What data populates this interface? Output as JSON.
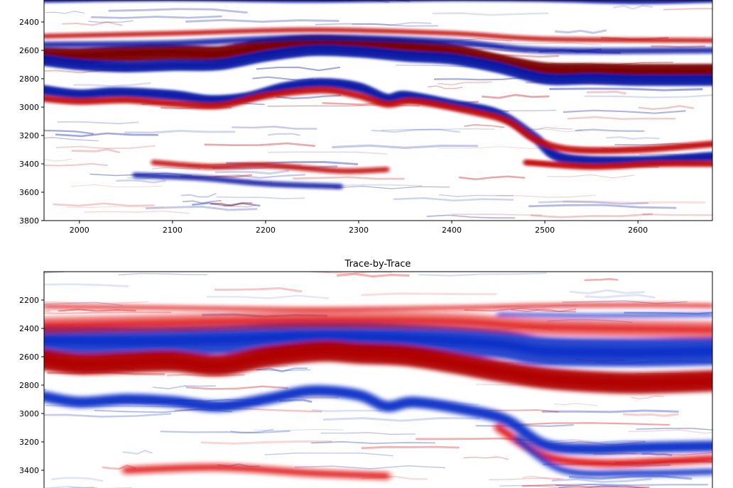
{
  "chart_data": [
    {
      "type": "heatmap",
      "title": "",
      "xlabel": "",
      "ylabel": "",
      "x_ticks": [
        2000,
        2100,
        2200,
        2300,
        2400,
        2500,
        2600
      ],
      "y_ticks": [
        2400,
        2600,
        2800,
        3000,
        3200,
        3400,
        3600,
        3800
      ],
      "xlim": [
        1962,
        2680
      ],
      "ylim": [
        3800,
        2200
      ],
      "colormap": "seismic (blue-white-red)",
      "colors": {
        "negative": "#0a1aa6",
        "zero": "#ffffff",
        "positive": "#c40a0a",
        "strong_positive": "#7a0000"
      },
      "horizons": [
        {
          "polarity": "positive",
          "strength": 1.0,
          "width": 22,
          "points": [
            [
              1962,
              2635
            ],
            [
              2000,
              2640
            ],
            [
              2040,
              2625
            ],
            [
              2100,
              2615
            ],
            [
              2150,
              2625
            ],
            [
              2200,
              2570
            ],
            [
              2250,
              2545
            ],
            [
              2300,
              2555
            ],
            [
              2350,
              2570
            ],
            [
              2400,
              2610
            ],
            [
              2450,
              2680
            ],
            [
              2500,
              2740
            ],
            [
              2550,
              2745
            ],
            [
              2600,
              2750
            ],
            [
              2680,
              2750
            ]
          ]
        },
        {
          "polarity": "negative",
          "strength": 1.0,
          "width": 16,
          "points": [
            [
              1962,
              2670
            ],
            [
              2000,
              2700
            ],
            [
              2050,
              2715
            ],
            [
              2100,
              2705
            ],
            [
              2150,
              2700
            ],
            [
              2200,
              2640
            ],
            [
              2250,
              2600
            ],
            [
              2300,
              2610
            ],
            [
              2350,
              2640
            ],
            [
              2400,
              2660
            ],
            [
              2450,
              2720
            ],
            [
              2500,
              2800
            ],
            [
              2550,
              2800
            ],
            [
              2600,
              2810
            ],
            [
              2680,
              2810
            ]
          ]
        },
        {
          "polarity": "negative",
          "strength": 1.0,
          "width": 14,
          "points": [
            [
              1962,
              2880
            ],
            [
              2000,
              2910
            ],
            [
              2040,
              2895
            ],
            [
              2100,
              2915
            ],
            [
              2140,
              2950
            ],
            [
              2180,
              2930
            ],
            [
              2220,
              2860
            ],
            [
              2260,
              2830
            ],
            [
              2300,
              2860
            ],
            [
              2330,
              2940
            ],
            [
              2350,
              2920
            ],
            [
              2400,
              2980
            ],
            [
              2450,
              3050
            ],
            [
              2490,
              3220
            ],
            [
              2520,
              3360
            ],
            [
              2600,
              3380
            ],
            [
              2680,
              3350
            ]
          ]
        },
        {
          "polarity": "positive",
          "strength": 0.8,
          "width": 10,
          "points": [
            [
              1962,
              2940
            ],
            [
              2000,
              2960
            ],
            [
              2050,
              2950
            ],
            [
              2100,
              2975
            ],
            [
              2150,
              2990
            ],
            [
              2200,
              2920
            ],
            [
              2260,
              2880
            ],
            [
              2300,
              2920
            ],
            [
              2330,
              2980
            ],
            [
              2360,
              2960
            ],
            [
              2420,
              3030
            ],
            [
              2460,
              3100
            ],
            [
              2490,
              3230
            ],
            [
              2530,
              3300
            ],
            [
              2600,
              3300
            ],
            [
              2680,
              3260
            ]
          ]
        },
        {
          "polarity": "positive",
          "strength": 0.9,
          "width": 9,
          "points": [
            [
              2480,
              3390
            ],
            [
              2550,
              3420
            ],
            [
              2620,
              3400
            ],
            [
              2680,
              3400
            ]
          ]
        },
        {
          "polarity": "negative",
          "strength": 0.8,
          "width": 8,
          "points": [
            [
              1962,
              2245
            ],
            [
              2100,
              2235
            ],
            [
              2250,
              2245
            ],
            [
              2400,
              2235
            ],
            [
              2500,
              2240
            ],
            [
              2600,
              2255
            ],
            [
              2680,
              2245
            ]
          ]
        },
        {
          "polarity": "positive",
          "strength": 0.5,
          "width": 8,
          "points": [
            [
              1962,
              2500
            ],
            [
              2100,
              2480
            ],
            [
              2250,
              2455
            ],
            [
              2400,
              2480
            ],
            [
              2500,
              2520
            ],
            [
              2680,
              2530
            ]
          ]
        },
        {
          "polarity": "negative",
          "strength": 0.5,
          "width": 10,
          "points": [
            [
              1962,
              2560
            ],
            [
              2100,
              2550
            ],
            [
              2250,
              2510
            ],
            [
              2400,
              2540
            ],
            [
              2500,
              2600
            ],
            [
              2680,
              2600
            ]
          ]
        },
        {
          "polarity": "positive",
          "strength": 0.55,
          "width": 9,
          "points": [
            [
              2080,
              3390
            ],
            [
              2140,
              3420
            ],
            [
              2200,
              3410
            ],
            [
              2280,
              3450
            ],
            [
              2330,
              3440
            ]
          ]
        },
        {
          "polarity": "negative",
          "strength": 0.5,
          "width": 9,
          "points": [
            [
              2060,
              3480
            ],
            [
              2130,
              3500
            ],
            [
              2200,
              3540
            ],
            [
              2280,
              3560
            ]
          ]
        }
      ]
    },
    {
      "type": "heatmap",
      "title": "Trace-by-Trace",
      "xlabel": "",
      "ylabel": "",
      "x_ticks": [],
      "y_ticks": [
        2200,
        2400,
        2600,
        2800,
        3000,
        3200,
        3400
      ],
      "xlim": [
        1962,
        2680
      ],
      "ylim": [
        3520,
        2020
      ],
      "colormap": "seismic (blue-white-red)",
      "colors": {
        "negative": "#1030c8",
        "zero": "#ffffff",
        "positive": "#e01010",
        "strong_positive": "#b00000"
      },
      "horizons": [
        {
          "polarity": "negative",
          "strength": 0.9,
          "width": 40,
          "points": [
            [
              1962,
              2480
            ],
            [
              2050,
              2490
            ],
            [
              2150,
              2480
            ],
            [
              2250,
              2455
            ],
            [
              2350,
              2470
            ],
            [
              2450,
              2510
            ],
            [
              2500,
              2560
            ],
            [
              2600,
              2570
            ],
            [
              2680,
              2560
            ]
          ]
        },
        {
          "polarity": "positive",
          "strength": 1.0,
          "width": 30,
          "points": [
            [
              1962,
              2620
            ],
            [
              2000,
              2650
            ],
            [
              2050,
              2640
            ],
            [
              2100,
              2630
            ],
            [
              2150,
              2660
            ],
            [
              2200,
              2600
            ],
            [
              2260,
              2560
            ],
            [
              2300,
              2575
            ],
            [
              2350,
              2590
            ],
            [
              2400,
              2640
            ],
            [
              2450,
              2700
            ],
            [
              2500,
              2750
            ],
            [
              2550,
              2775
            ],
            [
              2600,
              2785
            ],
            [
              2680,
              2770
            ]
          ]
        },
        {
          "polarity": "negative",
          "strength": 0.9,
          "width": 16,
          "points": [
            [
              1962,
              2880
            ],
            [
              2000,
              2920
            ],
            [
              2050,
              2900
            ],
            [
              2100,
              2915
            ],
            [
              2150,
              2950
            ],
            [
              2200,
              2900
            ],
            [
              2250,
              2840
            ],
            [
              2300,
              2870
            ],
            [
              2330,
              2950
            ],
            [
              2360,
              2920
            ],
            [
              2420,
              2980
            ],
            [
              2460,
              3050
            ],
            [
              2500,
              3220
            ],
            [
              2550,
              3250
            ],
            [
              2600,
              3240
            ],
            [
              2680,
              3230
            ]
          ]
        },
        {
          "polarity": "positive",
          "strength": 0.7,
          "width": 12,
          "points": [
            [
              2450,
              3100
            ],
            [
              2500,
              3300
            ],
            [
              2560,
              3350
            ],
            [
              2620,
              3340
            ],
            [
              2680,
              3320
            ]
          ]
        },
        {
          "polarity": "negative",
          "strength": 0.6,
          "width": 10,
          "points": [
            [
              2470,
              3180
            ],
            [
              2520,
              3400
            ],
            [
              2600,
              3420
            ],
            [
              2680,
              3410
            ]
          ]
        },
        {
          "polarity": "positive",
          "strength": 0.6,
          "width": 6,
          "points": [
            [
              1962,
              2245
            ],
            [
              2100,
              2255
            ],
            [
              2250,
              2265
            ],
            [
              2400,
              2255
            ],
            [
              2500,
              2240
            ],
            [
              2600,
              2235
            ],
            [
              2680,
              2240
            ]
          ]
        },
        {
          "polarity": "negative",
          "strength": 0.5,
          "width": 6,
          "points": [
            [
              2450,
              2300
            ],
            [
              2550,
              2310
            ],
            [
              2680,
              2305
            ]
          ]
        },
        {
          "polarity": "positive",
          "strength": 0.35,
          "width": 24,
          "points": [
            [
              1962,
              2380
            ],
            [
              2100,
              2360
            ],
            [
              2250,
              2340
            ],
            [
              2400,
              2350
            ],
            [
              2500,
              2390
            ],
            [
              2680,
              2410
            ]
          ]
        },
        {
          "polarity": "positive",
          "strength": 0.5,
          "width": 12,
          "points": [
            [
              2050,
              3400
            ],
            [
              2150,
              3380
            ],
            [
              2250,
              3420
            ],
            [
              2330,
              3440
            ]
          ]
        }
      ]
    }
  ]
}
